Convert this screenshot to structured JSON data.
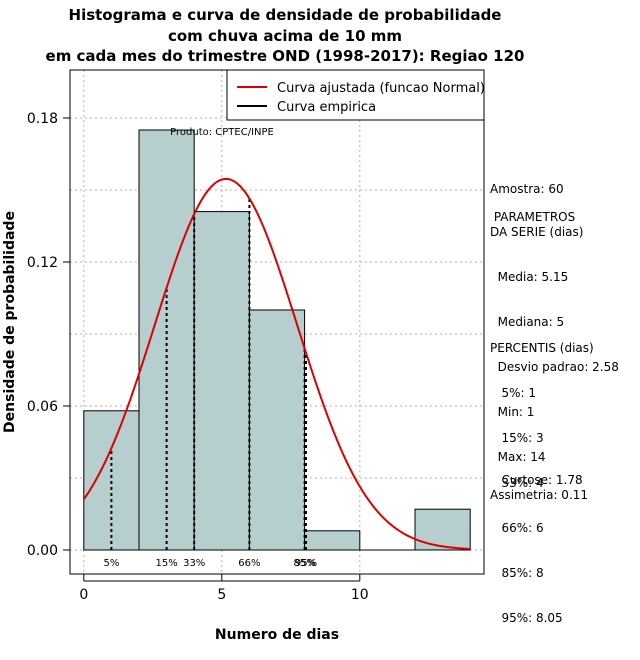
{
  "chart_data": {
    "type": "histogram",
    "title_lines": [
      "Histograma e curva de densidade de probabilidade",
      "com chuva acima de 10 mm",
      "em cada mes do trimestre OND (1998-2017): Regiao 120"
    ],
    "xlabel": "Numero de dias",
    "ylabel": "Densidade de probabilidade",
    "xlim": [
      -0.5,
      14.5
    ],
    "ylim": [
      -0.01,
      0.2
    ],
    "x_ticks": [
      0,
      5,
      10
    ],
    "y_ticks": [
      0.0,
      0.06,
      0.12,
      0.18
    ],
    "y_tick_labels": [
      "0.00",
      "0.06",
      "0.12",
      "0.18"
    ],
    "grid": true,
    "bins": [
      {
        "x0": 0,
        "x1": 2,
        "density": 0.058
      },
      {
        "x0": 2,
        "x1": 4,
        "density": 0.175
      },
      {
        "x0": 4,
        "x1": 6,
        "density": 0.141
      },
      {
        "x0": 6,
        "x1": 8,
        "density": 0.1
      },
      {
        "x0": 8,
        "x1": 10,
        "density": 0.008
      },
      {
        "x0": 10,
        "x1": 12,
        "density": 0.0
      },
      {
        "x0": 12,
        "x1": 14,
        "density": 0.017
      }
    ],
    "normal_curve": {
      "mean": 5.15,
      "sd": 2.58,
      "x_range": [
        0,
        14
      ]
    },
    "percentile_lines": [
      {
        "label": "5%",
        "x": 1
      },
      {
        "label": "15%",
        "x": 3
      },
      {
        "label": "33%",
        "x": 4
      },
      {
        "label": "66%",
        "x": 6
      },
      {
        "label": "85%",
        "x": 8
      },
      {
        "label": "95%",
        "x": 8.05
      }
    ],
    "legend": {
      "position": "top-right",
      "entries": [
        {
          "label": "Curva ajustada (funcao Normal)",
          "color": "#dd0000"
        },
        {
          "label": "Curva empirica",
          "color": "#000000"
        }
      ]
    },
    "annotation": "Produto: CPTEC/INPE",
    "colors": {
      "bar_fill": "#b6cece",
      "curve": "#dd0000",
      "grid": "#b0b0b0"
    }
  },
  "stats": {
    "amostra": "Amostra: 60",
    "parametros_title": " PARAMETROS\nDA SERIE (dias)",
    "parametros": [
      "  Media: 5.15",
      "  Mediana: 5",
      "  Desvio padrao: 2.58",
      "  Min: 1",
      "  Max: 14"
    ],
    "percentis_title": "PERCENTIS (dias)",
    "percentis": [
      "   5%: 1",
      "   15%: 3",
      "   33%: 4",
      "   66%: 6",
      "   85%: 8",
      "   95%: 8.05"
    ],
    "curtose": "   Curtose: 1.78",
    "assimetria": "Assimetria: 0.11"
  }
}
